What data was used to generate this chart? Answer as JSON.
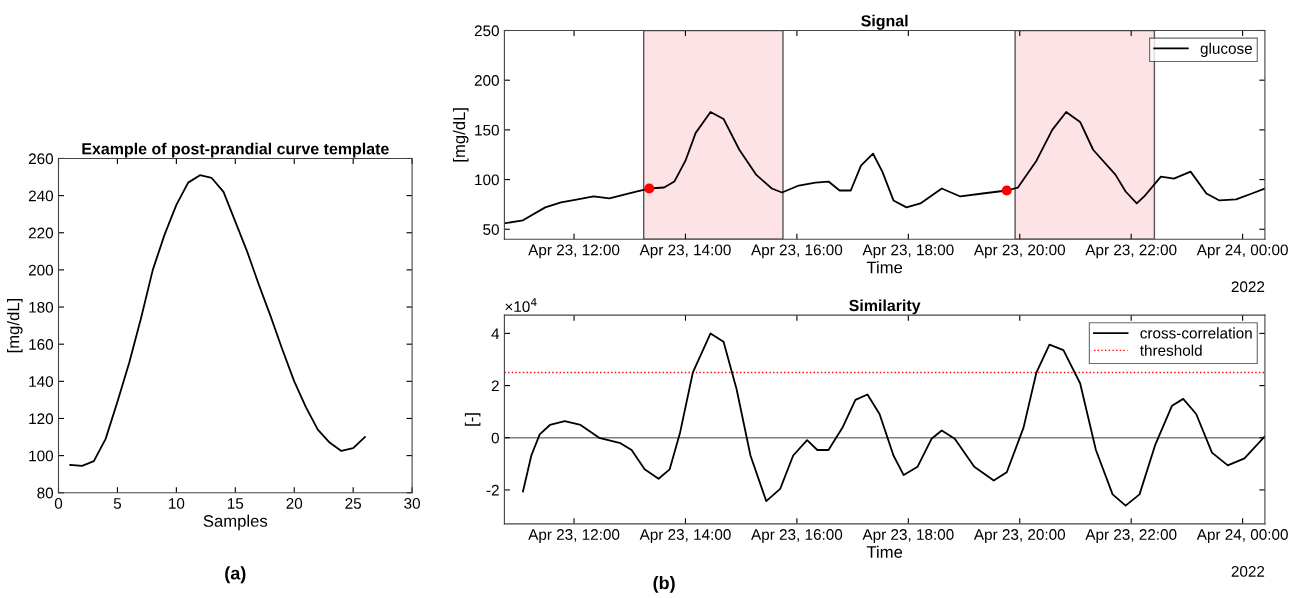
{
  "chart_data": [
    {
      "type": "line",
      "title": "Example of post-prandial curve template",
      "xlabel": "Samples",
      "ylabel": "[mg/dL]",
      "x": [
        1,
        2,
        3,
        4,
        5,
        6,
        7,
        8,
        9,
        10,
        11,
        12,
        13,
        14,
        15,
        16,
        17,
        18,
        19,
        20,
        21,
        22,
        23,
        24,
        25,
        26
      ],
      "series": [
        {
          "color": "#000000",
          "values": [
            95,
            94.5,
            97,
            109,
            129,
            150,
            174,
            200,
            219,
            235,
            247,
            251,
            249.5,
            242,
            226,
            210,
            192,
            175,
            157,
            140,
            126,
            114,
            107,
            102.5,
            104,
            110
          ]
        }
      ],
      "xlim": [
        0,
        30
      ],
      "xticks": [
        0,
        5,
        10,
        15,
        20,
        25,
        30
      ],
      "ylim": [
        80,
        260
      ],
      "yticks": [
        80,
        100,
        120,
        140,
        160,
        180,
        200,
        220,
        240,
        260
      ],
      "grid": false,
      "legend": false,
      "line_style": "solid",
      "annotations": [
        "(a)"
      ]
    },
    {
      "type": "line",
      "title": "Signal",
      "xlabel": "Time",
      "ylabel": "[mg/dL]",
      "series": [
        {
          "name": "glucose",
          "color": "#000000",
          "x": [
            "2022-04-23T10:45",
            "2022-04-23T11:05",
            "2022-04-23T11:29",
            "2022-04-23T11:46",
            "2022-04-23T12:04",
            "2022-04-23T12:21",
            "2022-04-23T12:38",
            "2022-04-23T13:08",
            "2022-04-23T13:21",
            "2022-04-23T13:37",
            "2022-04-23T13:48",
            "2022-04-23T14:00",
            "2022-04-23T14:11",
            "2022-04-23T14:27",
            "2022-04-23T14:41",
            "2022-04-23T14:58",
            "2022-04-23T15:16",
            "2022-04-23T15:33",
            "2022-04-23T15:44",
            "2022-04-23T16:02",
            "2022-04-23T16:20",
            "2022-04-23T16:34",
            "2022-04-23T16:46",
            "2022-04-23T16:58",
            "2022-04-23T17:09",
            "2022-04-23T17:22",
            "2022-04-23T17:32",
            "2022-04-23T17:44",
            "2022-04-23T17:58",
            "2022-04-23T18:13",
            "2022-04-23T18:36",
            "2022-04-23T18:56",
            "2022-04-23T19:20",
            "2022-04-23T19:46",
            "2022-04-23T19:58",
            "2022-04-23T20:18",
            "2022-04-23T20:35",
            "2022-04-23T20:50",
            "2022-04-23T21:05",
            "2022-04-23T21:19",
            "2022-04-23T21:43",
            "2022-04-23T21:54",
            "2022-04-23T22:06",
            "2022-04-23T22:14",
            "2022-04-23T22:32",
            "2022-04-23T22:46",
            "2022-04-23T23:04",
            "2022-04-23T23:21",
            "2022-04-23T23:35",
            "2022-04-23T23:53",
            "2022-04-24T00:10",
            "2022-04-24T00:24"
          ],
          "values": [
            56,
            59,
            72,
            77,
            80,
            83,
            81,
            88,
            91,
            92,
            98,
            119,
            147,
            168,
            161,
            130,
            105,
            91,
            87,
            94,
            97,
            98,
            89,
            89,
            114,
            126,
            108,
            79,
            72,
            76,
            91,
            83,
            86,
            89,
            92,
            119,
            150,
            168,
            158,
            130,
            105,
            88,
            76,
            83,
            103,
            101,
            108,
            86,
            79,
            80,
            86,
            91
          ]
        },
        {
          "type": "scatter",
          "color": "#ff0000",
          "x": [
            "2022-04-23T13:21",
            "2022-04-23T19:46"
          ],
          "values": [
            91,
            89
          ]
        }
      ],
      "xlim": [
        "2022-04-23T10:45",
        "2022-04-24T00:24"
      ],
      "xticks": [
        {
          "value": "2022-04-23T12:00",
          "label": "Apr 23, 12:00"
        },
        {
          "value": "2022-04-23T14:00",
          "label": "Apr 23, 14:00"
        },
        {
          "value": "2022-04-23T16:00",
          "label": "Apr 23, 16:00"
        },
        {
          "value": "2022-04-23T18:00",
          "label": "Apr 23, 18:00"
        },
        {
          "value": "2022-04-23T20:00",
          "label": "Apr 23, 20:00"
        },
        {
          "value": "2022-04-23T22:00",
          "label": "Apr 23, 22:00"
        },
        {
          "value": "2022-04-24T00:00",
          "label": "Apr 24, 00:00"
        }
      ],
      "ylim": [
        40,
        250
      ],
      "yticks": [
        50,
        100,
        150,
        200,
        250
      ],
      "bands": [
        {
          "axis": "x",
          "from": "2022-04-23T13:15",
          "to": "2022-04-23T15:45",
          "color": "#fde3e6"
        },
        {
          "axis": "x",
          "from": "2022-04-23T19:55",
          "to": "2022-04-23T22:25",
          "color": "#fde3e6"
        }
      ],
      "grid": false,
      "legend": "top right",
      "line_style": "solid",
      "annotations": [
        "2022"
      ]
    },
    {
      "type": "line",
      "title": "Similarity",
      "xlabel": "Time",
      "ylabel": "[-]",
      "series": [
        {
          "name": "cross-correlation",
          "color": "#000000",
          "x": [
            "2022-04-23T11:05",
            "2022-04-23T11:14",
            "2022-04-23T11:23",
            "2022-04-23T11:34",
            "2022-04-23T11:50",
            "2022-04-23T12:07",
            "2022-04-23T12:27",
            "2022-04-23T12:50",
            "2022-04-23T13:02",
            "2022-04-23T13:16",
            "2022-04-23T13:31",
            "2022-04-23T13:43",
            "2022-04-23T13:54",
            "2022-04-23T14:08",
            "2022-04-23T14:27",
            "2022-04-23T14:41",
            "2022-04-23T14:55",
            "2022-04-23T15:10",
            "2022-04-23T15:27",
            "2022-04-23T15:42",
            "2022-04-23T15:56",
            "2022-04-23T16:11",
            "2022-04-23T16:22",
            "2022-04-23T16:34",
            "2022-04-23T16:49",
            "2022-04-23T17:03",
            "2022-04-23T17:16",
            "2022-04-23T17:29",
            "2022-04-23T17:44",
            "2022-04-23T17:55",
            "2022-04-23T18:10",
            "2022-04-23T18:25",
            "2022-04-23T18:36",
            "2022-04-23T18:50",
            "2022-04-23T19:11",
            "2022-04-23T19:32",
            "2022-04-23T19:46",
            "2022-04-23T20:04",
            "2022-04-23T20:18",
            "2022-04-23T20:32",
            "2022-04-23T20:47",
            "2022-04-23T21:05",
            "2022-04-23T21:22",
            "2022-04-23T21:40",
            "2022-04-23T21:54",
            "2022-04-23T22:09",
            "2022-04-23T22:26",
            "2022-04-23T22:44",
            "2022-04-23T22:56",
            "2022-04-23T23:10",
            "2022-04-23T23:27",
            "2022-04-23T23:44",
            "2022-04-24T00:02",
            "2022-04-24T00:24"
          ],
          "values": [
            -2.06,
            -0.68,
            0.13,
            0.49,
            0.64,
            0.49,
            0,
            -0.21,
            -0.47,
            -1.21,
            -1.57,
            -1.21,
            0.17,
            2.51,
            4.0,
            3.68,
            1.87,
            -0.68,
            -2.43,
            -1.96,
            -0.68,
            -0.09,
            -0.47,
            -0.47,
            0.38,
            1.45,
            1.66,
            0.91,
            -0.68,
            -1.43,
            -1.11,
            -0.04,
            0.28,
            -0.04,
            -1.11,
            -1.64,
            -1.32,
            0.38,
            2.51,
            3.57,
            3.36,
            2.09,
            -0.47,
            -2.17,
            -2.6,
            -2.17,
            -0.26,
            1.23,
            1.49,
            0.91,
            -0.57,
            -1.06,
            -0.79,
            0.06
          ]
        }
      ],
      "xlim": [
        "2022-04-23T10:45",
        "2022-04-24T00:24"
      ],
      "xticks": [
        {
          "value": "2022-04-23T12:00",
          "label": "Apr 23, 12:00"
        },
        {
          "value": "2022-04-23T14:00",
          "label": "Apr 23, 14:00"
        },
        {
          "value": "2022-04-23T16:00",
          "label": "Apr 23, 16:00"
        },
        {
          "value": "2022-04-23T18:00",
          "label": "Apr 23, 18:00"
        },
        {
          "value": "2022-04-23T20:00",
          "label": "Apr 23, 20:00"
        },
        {
          "value": "2022-04-23T22:00",
          "label": "Apr 23, 22:00"
        },
        {
          "value": "2022-04-24T00:00",
          "label": "Apr 24, 00:00"
        }
      ],
      "ylim": [
        -3.3,
        4.7
      ],
      "yticks": [
        -2,
        0,
        2,
        4
      ],
      "ref_lines": [
        {
          "axis": "y",
          "value": 0,
          "color": "#808080",
          "line_style": "solid"
        },
        {
          "axis": "y",
          "value": 2.5,
          "label": "threshold",
          "color": "#ff0000",
          "line_style": "dotted"
        }
      ],
      "grid": false,
      "legend": "top right",
      "line_style": "solid",
      "annotations": [
        "×10$^{4}$",
        "2022",
        "(b)"
      ]
    }
  ]
}
